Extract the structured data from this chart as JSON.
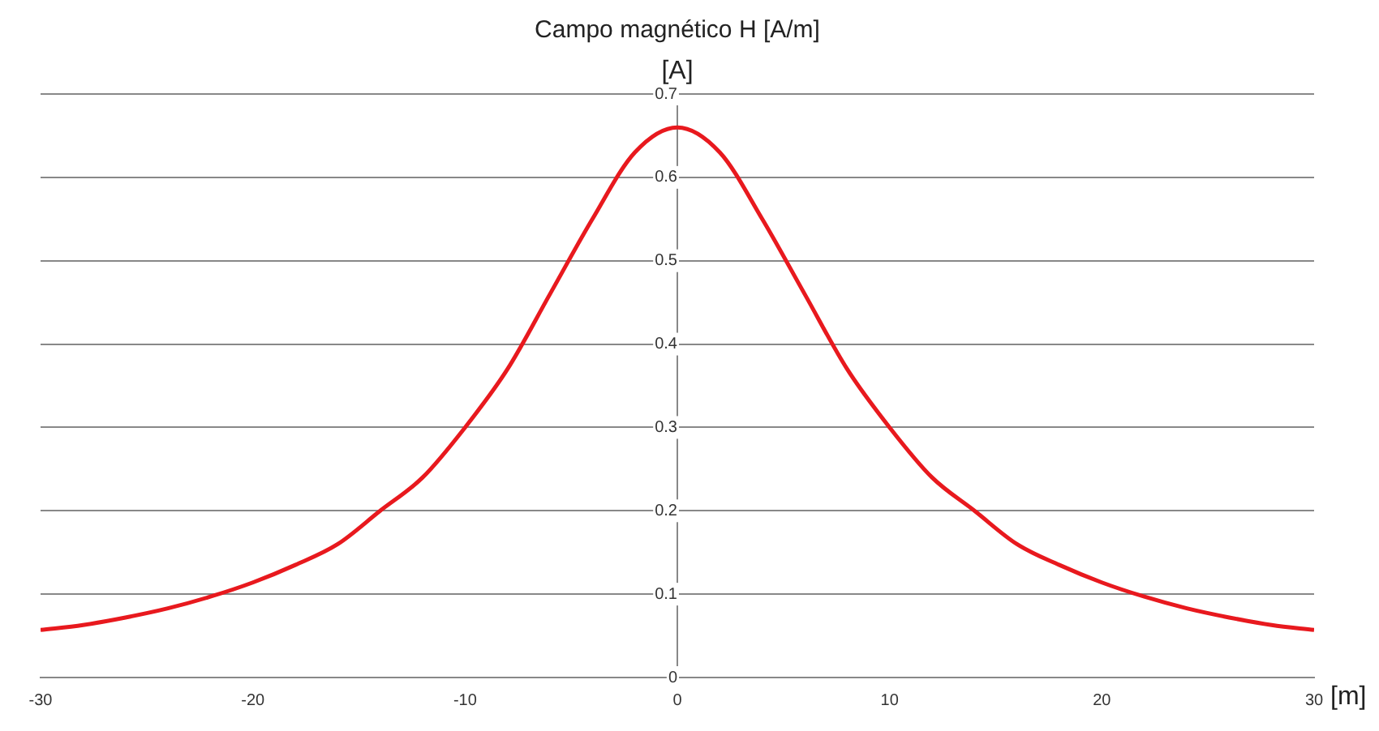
{
  "chart_data": {
    "type": "line",
    "title": "Campo magnético H [A/m]",
    "xlabel": "[m]",
    "ylabel": "[A]",
    "x": [
      -30,
      -28,
      -26,
      -24,
      -22,
      -20,
      -18,
      -16,
      -14,
      -12,
      -10,
      -8,
      -6,
      -4,
      -2,
      0,
      2,
      4,
      6,
      8,
      10,
      12,
      14,
      16,
      18,
      20,
      22,
      24,
      26,
      28,
      30
    ],
    "series": [
      {
        "color": "#e8191e",
        "values": [
          0.057,
          0.063,
          0.072,
          0.083,
          0.097,
          0.114,
          0.135,
          0.16,
          0.2,
          0.24,
          0.3,
          0.37,
          0.46,
          0.55,
          0.63,
          0.66,
          0.63,
          0.55,
          0.46,
          0.37,
          0.3,
          0.24,
          0.2,
          0.16,
          0.135,
          0.114,
          0.097,
          0.083,
          0.072,
          0.063,
          0.057
        ]
      }
    ],
    "xlim": [
      -30,
      30
    ],
    "xticks": [
      -30,
      -20,
      -10,
      0,
      10,
      20,
      30
    ],
    "ylim": [
      0,
      0.7
    ],
    "yticks": [
      0,
      0.1,
      0.2,
      0.3,
      0.4,
      0.5,
      0.6,
      0.7
    ],
    "grid": "y",
    "legend": false,
    "marker": "none",
    "line_style": "solid"
  }
}
